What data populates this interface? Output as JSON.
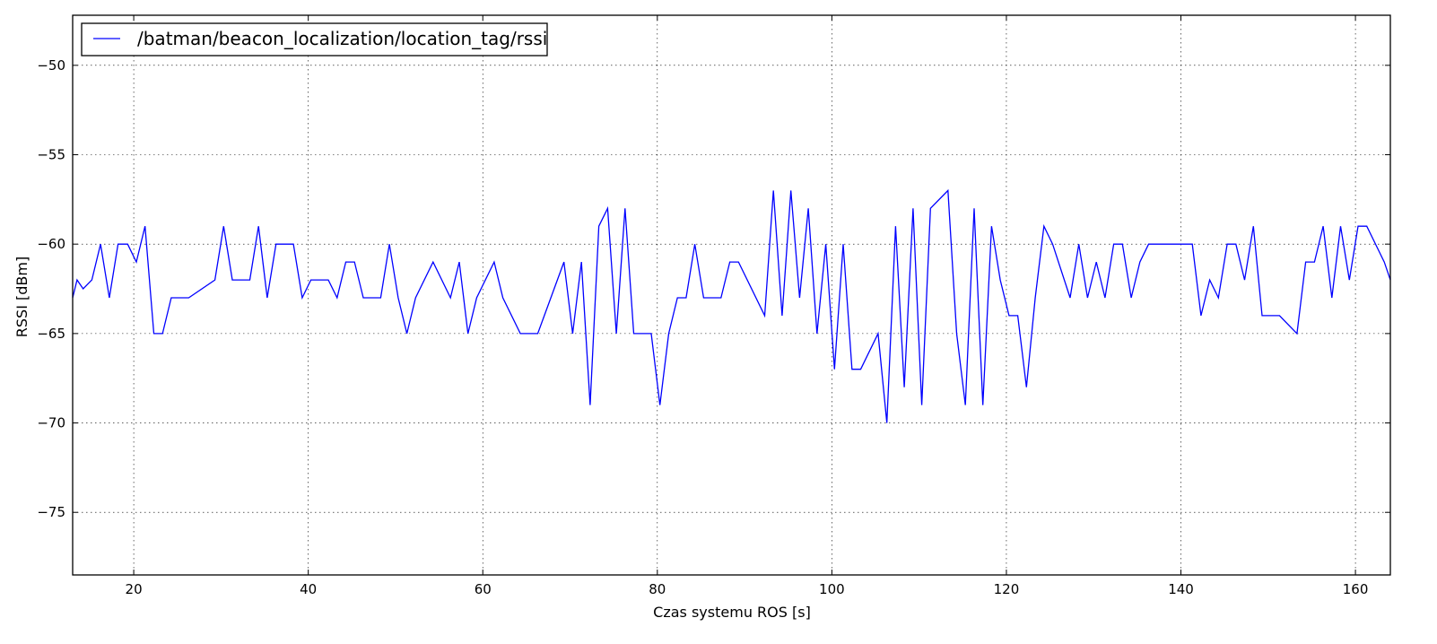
{
  "chart_data": {
    "type": "line",
    "title": "",
    "xlabel": "Czas systemu ROS [s]",
    "ylabel": "RSSI [dBm]",
    "xlim": [
      13,
      164
    ],
    "ylim": [
      -78.5,
      -47.2
    ],
    "xticks": [
      20,
      40,
      60,
      80,
      100,
      120,
      140,
      160
    ],
    "xtick_labels": [
      "20",
      "40",
      "60",
      "80",
      "100",
      "120",
      "140",
      "160"
    ],
    "yticks": [
      -75,
      -70,
      -65,
      -60,
      -55,
      -50
    ],
    "ytick_labels": [
      "−75",
      "−70",
      "−65",
      "−60",
      "−55",
      "−50"
    ],
    "grid": true,
    "legend_position": "top-left",
    "series": [
      {
        "name": "/batman/beacon_localization/location_tag/rssi",
        "color": "#0000ff",
        "x": [
          13,
          13.5,
          14.2,
          15.2,
          16.2,
          17.2,
          18.2,
          19.3,
          20.3,
          21.3,
          22.3,
          23.3,
          24.3,
          25.3,
          26.3,
          29.3,
          30.3,
          31.3,
          33.3,
          34.3,
          35.3,
          36.3,
          37.3,
          38.3,
          39.3,
          40.3,
          42.3,
          43.3,
          44.3,
          45.3,
          46.3,
          48.3,
          49.3,
          50.3,
          51.3,
          52.3,
          54.3,
          56.3,
          57.3,
          58.3,
          59.3,
          61.3,
          62.3,
          64.3,
          66.3,
          69.3,
          70.3,
          71.3,
          72.3,
          73.3,
          74.3,
          75.3,
          76.3,
          77.3,
          79.3,
          80.3,
          81.3,
          82.3,
          83.3,
          84.3,
          85.3,
          87.3,
          88.3,
          89.3,
          92.3,
          93.3,
          94.3,
          95.3,
          96.3,
          97.3,
          98.3,
          99.3,
          100.3,
          101.3,
          102.3,
          103.3,
          105.3,
          106.3,
          107.3,
          108.3,
          109.3,
          110.3,
          111.3,
          113.3,
          114.3,
          115.3,
          116.3,
          117.3,
          118.3,
          119.3,
          120.3,
          121.3,
          122.3,
          123.3,
          124.3,
          125.3,
          127.3,
          128.3,
          129.3,
          130.3,
          131.3,
          132.3,
          133.3,
          134.3,
          135.3,
          136.3,
          137.3,
          140.3,
          141.3,
          142.3,
          143.3,
          144.3,
          145.3,
          146.3,
          147.3,
          148.3,
          149.3,
          151.3,
          153.3,
          154.3,
          155.3,
          156.3,
          157.3,
          158.3,
          159.3,
          160.3,
          161.3,
          163.3,
          164
        ],
        "y": [
          -63,
          -62,
          -62.5,
          -62,
          -60,
          -63,
          -60,
          -60,
          -61,
          -59,
          -65,
          -65,
          -63,
          -63,
          -63,
          -62,
          -59,
          -62,
          -62,
          -59,
          -63,
          -60,
          -60,
          -60,
          -63,
          -62,
          -62,
          -63,
          -61,
          -61,
          -63,
          -63,
          -60,
          -63,
          -65,
          -63,
          -61,
          -63,
          -61,
          -65,
          -63,
          -61,
          -63,
          -65,
          -65,
          -61,
          -65,
          -61,
          -69,
          -59,
          -58,
          -65,
          -58,
          -65,
          -65,
          -69,
          -65,
          -63,
          -63,
          -60,
          -63,
          -63,
          -61,
          -61,
          -64,
          -57,
          -64,
          -57,
          -63,
          -58,
          -65,
          -60,
          -67,
          -60,
          -67,
          -67,
          -65,
          -70,
          -59,
          -68,
          -58,
          -69,
          -58,
          -57,
          -65,
          -69,
          -58,
          -69,
          -59,
          -62,
          -64,
          -64,
          -68,
          -63,
          -59,
          -60,
          -63,
          -60,
          -63,
          -61,
          -63,
          -60,
          -60,
          -63,
          -61,
          -60,
          -60,
          -60,
          -60,
          -64,
          -62,
          -63,
          -60,
          -60,
          -62,
          -59,
          -64,
          -64,
          -65,
          -61,
          -61,
          -59,
          -63,
          -59,
          -62,
          -59,
          -59,
          -61,
          -62
        ]
      }
    ]
  }
}
